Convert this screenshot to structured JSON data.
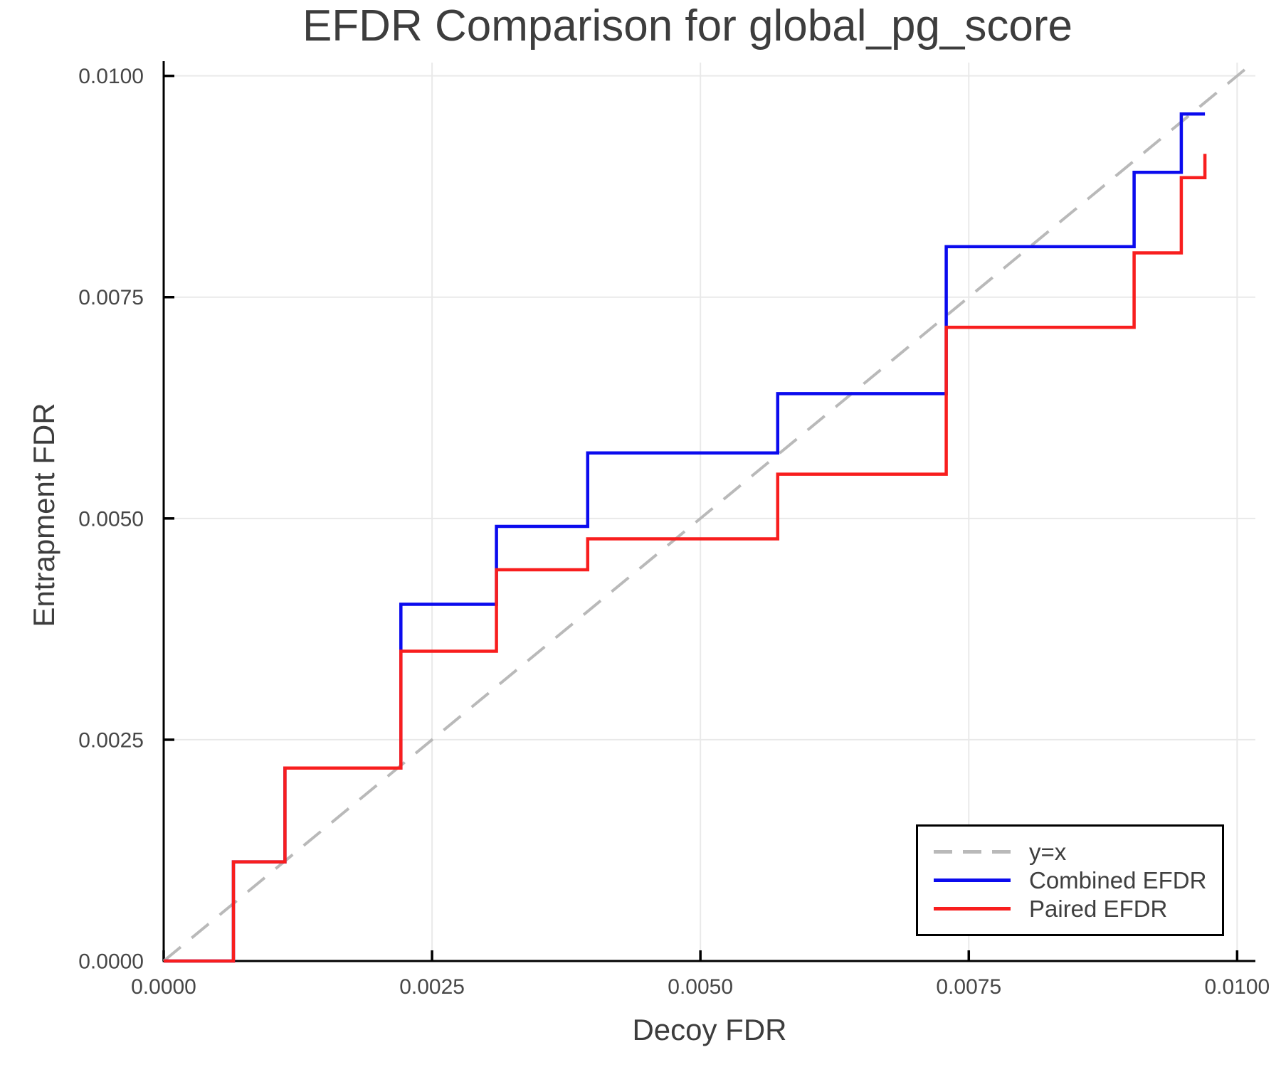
{
  "chart_data": {
    "type": "line",
    "subtype": "step",
    "title": "EFDR Comparison for global_pg_score",
    "xlabel": "Decoy FDR",
    "ylabel": "Entrapment FDR",
    "xlim": [
      0,
      0.01017
    ],
    "ylim": [
      0,
      0.01015
    ],
    "grid": true,
    "legend_position": "bottom-right",
    "axis_color": "#000000",
    "grid_color": "#e9e9e9",
    "text_color": "#3d3d3d",
    "tick_label_color": "#474747",
    "xticks": {
      "values": [
        0,
        0.0025,
        0.005,
        0.0075,
        0.01
      ],
      "labels": [
        "0.0000",
        "0.0025",
        "0.0050",
        "0.0075",
        "0.0100"
      ]
    },
    "yticks": {
      "values": [
        0,
        0.0025,
        0.005,
        0.0075,
        0.01
      ],
      "labels": [
        "0.0000",
        "0.0025",
        "0.0050",
        "0.0075",
        "0.0100"
      ]
    },
    "series": [
      {
        "name": "y=x",
        "style": "dashed",
        "color": "#b9b9b9",
        "line_width": 4,
        "points": [
          [
            0,
            0
          ],
          [
            0.01015,
            0.01015
          ]
        ]
      },
      {
        "name": "Combined EFDR",
        "style": "solid",
        "color": "#0b0bee",
        "line_width": 4.5,
        "points": [
          [
            0.0,
            0.0
          ],
          [
            0.00065,
            0.0
          ],
          [
            0.00065,
            0.00112
          ],
          [
            0.00113,
            0.00112
          ],
          [
            0.00113,
            0.00218
          ],
          [
            0.00221,
            0.00218
          ],
          [
            0.00221,
            0.00403
          ],
          [
            0.0031,
            0.00403
          ],
          [
            0.0031,
            0.00491
          ],
          [
            0.00395,
            0.00491
          ],
          [
            0.00395,
            0.00574
          ],
          [
            0.00572,
            0.00574
          ],
          [
            0.00572,
            0.00641
          ],
          [
            0.00729,
            0.00641
          ],
          [
            0.00729,
            0.00807
          ],
          [
            0.00904,
            0.00807
          ],
          [
            0.00904,
            0.00891
          ],
          [
            0.00948,
            0.00891
          ],
          [
            0.00948,
            0.00957
          ],
          [
            0.0097,
            0.00957
          ]
        ]
      },
      {
        "name": "Paired EFDR",
        "style": "solid",
        "color": "#f81e1e",
        "line_width": 4.5,
        "points": [
          [
            0.0,
            0.0
          ],
          [
            0.00065,
            0.0
          ],
          [
            0.00065,
            0.00112
          ],
          [
            0.00113,
            0.00112
          ],
          [
            0.00113,
            0.00218
          ],
          [
            0.00221,
            0.00218
          ],
          [
            0.00221,
            0.0035
          ],
          [
            0.0031,
            0.0035
          ],
          [
            0.0031,
            0.00442
          ],
          [
            0.00395,
            0.00442
          ],
          [
            0.00395,
            0.00477
          ],
          [
            0.00572,
            0.00477
          ],
          [
            0.00572,
            0.0055
          ],
          [
            0.00729,
            0.0055
          ],
          [
            0.00729,
            0.00716
          ],
          [
            0.00904,
            0.00716
          ],
          [
            0.00904,
            0.008
          ],
          [
            0.00948,
            0.008
          ],
          [
            0.00948,
            0.00885
          ],
          [
            0.0097,
            0.00885
          ],
          [
            0.0097,
            0.00912
          ]
        ]
      }
    ]
  }
}
